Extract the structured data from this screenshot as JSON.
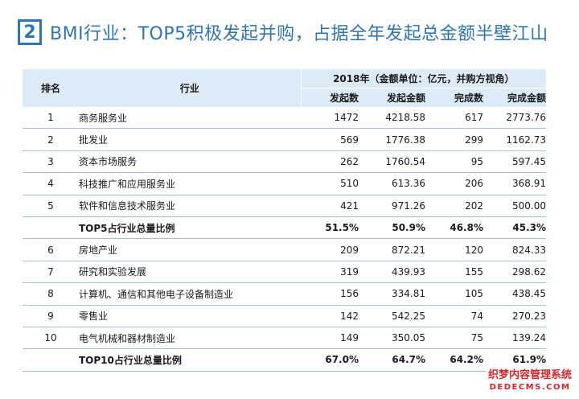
{
  "title": {
    "number": "2",
    "text": "BMI行业：TOP5积极发起并购，占据全年发起总金额半壁江山"
  },
  "table": {
    "header": {
      "rank": "排名",
      "industry": "行业",
      "group": "2018年（金额单位：亿元，并购方视角）",
      "columns": [
        "发起数",
        "发起金额",
        "完成数",
        "完成金额"
      ]
    },
    "rows": [
      {
        "rank": "1",
        "industry": "商务服务业",
        "initiated_count": "1472",
        "initiated_amount": "4218.58",
        "completed_count": "617",
        "completed_amount": "2773.76"
      },
      {
        "rank": "2",
        "industry": "批发业",
        "initiated_count": "569",
        "initiated_amount": "1776.38",
        "completed_count": "299",
        "completed_amount": "1162.73"
      },
      {
        "rank": "3",
        "industry": "资本市场服务",
        "initiated_count": "262",
        "initiated_amount": "1760.54",
        "completed_count": "95",
        "completed_amount": "597.45"
      },
      {
        "rank": "4",
        "industry": "科技推广和应用服务业",
        "initiated_count": "510",
        "initiated_amount": "613.36",
        "completed_count": "206",
        "completed_amount": "368.91"
      },
      {
        "rank": "5",
        "industry": "软件和信息技术服务业",
        "initiated_count": "421",
        "initiated_amount": "971.26",
        "completed_count": "202",
        "completed_amount": "500.00"
      },
      {
        "rank": "",
        "industry": "TOP5占行业总量比例",
        "initiated_count": "51.5%",
        "initiated_amount": "50.9%",
        "completed_count": "46.8%",
        "completed_amount": "45.3%"
      },
      {
        "rank": "6",
        "industry": "房地产业",
        "initiated_count": "209",
        "initiated_amount": "872.21",
        "completed_count": "120",
        "completed_amount": "824.33"
      },
      {
        "rank": "7",
        "industry": "研究和实验发展",
        "initiated_count": "319",
        "initiated_amount": "439.93",
        "completed_count": "155",
        "completed_amount": "298.62"
      },
      {
        "rank": "8",
        "industry": "计算机、通信和其他电子设备制造业",
        "initiated_count": "156",
        "initiated_amount": "334.81",
        "completed_count": "105",
        "completed_amount": "438.45"
      },
      {
        "rank": "9",
        "industry": "零售业",
        "initiated_count": "142",
        "initiated_amount": "542.25",
        "completed_count": "74",
        "completed_amount": "270.23"
      },
      {
        "rank": "10",
        "industry": "电气机械和器材制造业",
        "initiated_count": "149",
        "initiated_amount": "350.05",
        "completed_count": "75",
        "completed_amount": "139.24"
      },
      {
        "rank": "",
        "industry": "TOP10占行业总量比例",
        "initiated_count": "67.0%",
        "initiated_amount": "64.7%",
        "completed_count": "64.2%",
        "completed_amount": "61.9%"
      }
    ]
  },
  "watermark": {
    "line1": "织梦内容管理系统",
    "line2": "DEDECMS.COM"
  },
  "colors": {
    "accent": "#2e75b6",
    "header_bg": "#ddebf7",
    "row_border": "#9bc2e6",
    "watermark_red": "#d9252a"
  }
}
